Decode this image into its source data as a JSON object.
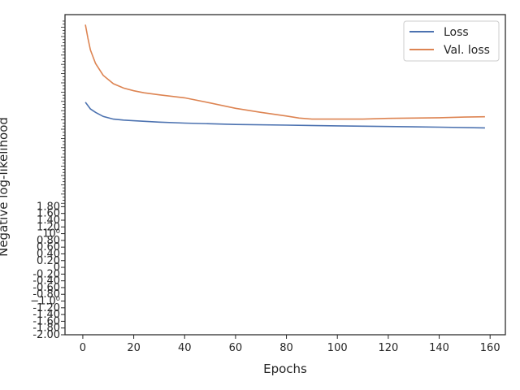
{
  "chart_data": {
    "type": "line",
    "title": "",
    "xlabel": "Epochs",
    "ylabel": "Negative log-likelihood",
    "xlim": [
      -7,
      166
    ],
    "ylim": [
      -2.0,
      7.5
    ],
    "x_ticks": [
      0,
      20,
      40,
      60,
      80,
      100,
      120,
      140,
      160
    ],
    "x_tick_labels": [
      "0",
      "20",
      "40",
      "60",
      "80",
      "100",
      "120",
      "140",
      "160"
    ],
    "y_tick_labels": [
      "-2.00",
      "-1.80",
      "-1.60",
      "-1.40",
      "-1.20",
      "−1.0⁰",
      "-0.80",
      "-0.60",
      "-0.40",
      "-0.20",
      "0",
      "0.20",
      "0.40",
      "0.60",
      "0.80",
      "10⁰",
      "1.20",
      "1.40",
      "1.60",
      "1.80"
    ],
    "grid": false,
    "legend_position": "top-right",
    "colors": {
      "Loss": "#4c72b0",
      "Val. loss": "#dd8452",
      "axis": "#262626"
    },
    "series": [
      {
        "name": "Loss",
        "x": [
          1,
          3,
          5,
          8,
          12,
          16,
          20,
          30,
          40,
          60,
          80,
          100,
          120,
          140,
          158
        ],
        "values": [
          4.9,
          4.7,
          4.6,
          4.48,
          4.4,
          4.37,
          4.35,
          4.31,
          4.28,
          4.24,
          4.22,
          4.2,
          4.18,
          4.16,
          4.14
        ]
      },
      {
        "name": "Val. loss",
        "x": [
          1,
          2,
          3,
          5,
          8,
          12,
          16,
          20,
          24,
          30,
          40,
          50,
          60,
          70,
          80,
          85,
          90,
          100,
          110,
          120,
          130,
          140,
          150,
          158
        ],
        "values": [
          7.2,
          6.8,
          6.45,
          6.05,
          5.7,
          5.45,
          5.32,
          5.24,
          5.18,
          5.12,
          5.03,
          4.88,
          4.72,
          4.6,
          4.49,
          4.43,
          4.4,
          4.4,
          4.4,
          4.42,
          4.43,
          4.44,
          4.46,
          4.47
        ]
      }
    ]
  }
}
